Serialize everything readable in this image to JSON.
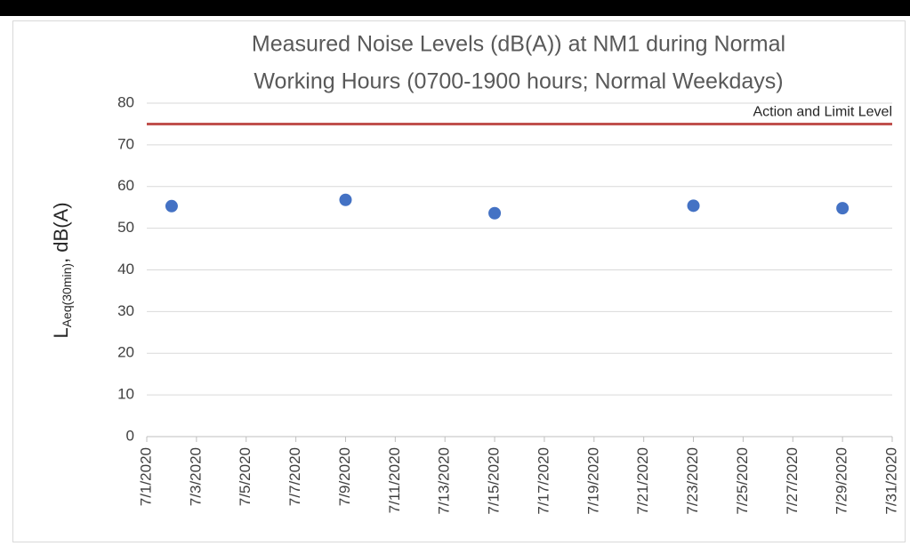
{
  "chart_data": {
    "type": "scatter",
    "title": [
      "Measured Noise Levels (dB(A)) at NM1 during Normal",
      "Working Hours (0700-1900 hours; Normal Weekdays)"
    ],
    "y_label": {
      "main": "L",
      "sub": "Aeq(30min)",
      "suffix": ", dB(A)"
    },
    "series": [
      {
        "color": "#4472c4",
        "x": [
          "7/2/2020",
          "7/9/2020",
          "7/15/2020",
          "7/23/2020",
          "7/29/2020"
        ],
        "values": [
          55.3,
          56.8,
          53.6,
          55.4,
          54.8
        ]
      }
    ],
    "reference_lines": [
      {
        "label": "Action and Limit Level",
        "value": 75,
        "color": "#c0504d"
      }
    ],
    "xlim": [
      "7/1/2020",
      "7/31/2020"
    ],
    "xticks": [
      "7/1/2020",
      "7/3/2020",
      "7/5/2020",
      "7/7/2020",
      "7/9/2020",
      "7/11/2020",
      "7/13/2020",
      "7/15/2020",
      "7/17/2020",
      "7/19/2020",
      "7/21/2020",
      "7/23/2020",
      "7/25/2020",
      "7/27/2020",
      "7/29/2020",
      "7/31/2020"
    ],
    "ylim": [
      0,
      80
    ],
    "yticks": [
      0,
      10,
      20,
      30,
      40,
      50,
      60,
      70,
      80
    ],
    "grid": true
  }
}
